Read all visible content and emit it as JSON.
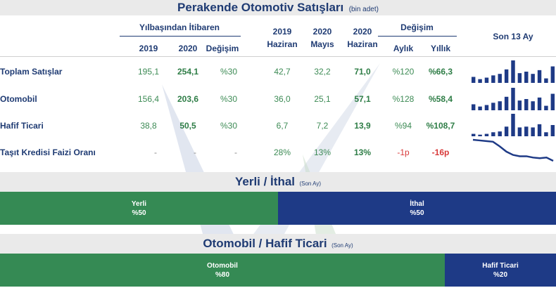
{
  "title": {
    "main": "Perakende Otomotiv Satışları",
    "sub": "(bin adet)"
  },
  "headers": {
    "ytd_group": "Yılbaşından İtibaren",
    "ytd_2019": "2019",
    "ytd_2020": "2020",
    "ytd_change": "Değişim",
    "m_2019_year": "2019",
    "m_2019_month": "Haziran",
    "m_2020a_year": "2020",
    "m_2020a_month": "Mayıs",
    "m_2020b_year": "2020",
    "m_2020b_month": "Haziran",
    "change_group": "Değişim",
    "change_monthly": "Aylık",
    "change_yearly": "Yıllık",
    "spark_title": "Son 13 Ay"
  },
  "rows": [
    {
      "label": "Toplam Satışlar",
      "ytd_2019": "195,1",
      "ytd_2020": "254,1",
      "ytd_change": "%30",
      "m_2019": "42,7",
      "m_2020a": "32,2",
      "m_2020b": "71,0",
      "monthly": "%120",
      "yearly": "%66,3",
      "spark": [
        8,
        5,
        7,
        10,
        12,
        18,
        30,
        13,
        15,
        12,
        17,
        6,
        22
      ]
    },
    {
      "label": "Otomobil",
      "ytd_2019": "156,4",
      "ytd_2020": "203,6",
      "ytd_change": "%30",
      "m_2019": "36,0",
      "m_2020a": "25,1",
      "m_2020b": "57,1",
      "monthly": "%128",
      "yearly": "%58,4",
      "spark": [
        8,
        5,
        7,
        10,
        12,
        18,
        30,
        13,
        15,
        12,
        17,
        6,
        22
      ]
    },
    {
      "label": "Hafif Ticari",
      "ytd_2019": "38,8",
      "ytd_2020": "50,5",
      "ytd_change": "%30",
      "m_2019": "6,7",
      "m_2020a": "7,2",
      "m_2020b": "13,9",
      "monthly": "%94",
      "yearly": "%108,7",
      "spark": [
        3,
        2,
        3,
        5,
        6,
        12,
        28,
        11,
        12,
        11,
        15,
        5,
        14
      ]
    },
    {
      "label": "Taşıt Kredisi Faizi Oranı",
      "ytd_2019": "-",
      "ytd_2020": "-",
      "ytd_change": "-",
      "m_2019": "28%",
      "m_2020a": "13%",
      "m_2020b": "13%",
      "monthly": "-1p",
      "yearly": "-16p",
      "spark_line": [
        29,
        28.5,
        28,
        27.5,
        24,
        20,
        17.5,
        16.5,
        16.5,
        15.5,
        15,
        15.5,
        13
      ]
    }
  ],
  "split1": {
    "title": "Yerli / İthal",
    "sub": "(Son Ay)",
    "left_label": "Yerli",
    "left_value": "%50",
    "right_label": "İthal",
    "right_value": "%50",
    "left_share": 0.5
  },
  "split2": {
    "title": "Otomobil / Hafif Ticari",
    "sub": "(Son Ay)",
    "left_label": "Otomobil",
    "left_value": "%80",
    "right_label": "Hafif Ticari",
    "right_value": "%20",
    "left_share": 0.8
  },
  "colors": {
    "navy": "#1f3b73",
    "green": "#358a54",
    "blue": "#1e3a86",
    "red": "#d83a3a"
  }
}
